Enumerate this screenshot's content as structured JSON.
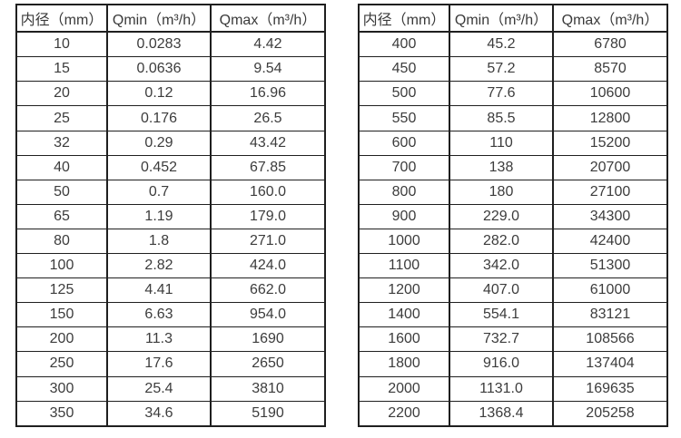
{
  "tables": [
    {
      "id": "left",
      "headers": [
        "内径（mm）",
        "Qmin（m³/h）",
        "Qmax（m³/h）"
      ],
      "rows": [
        [
          "10",
          "0.0283",
          "4.42"
        ],
        [
          "15",
          "0.0636",
          "9.54"
        ],
        [
          "20",
          "0.12",
          "16.96"
        ],
        [
          "25",
          "0.176",
          "26.5"
        ],
        [
          "32",
          "0.29",
          "43.42"
        ],
        [
          "40",
          "0.452",
          "67.85"
        ],
        [
          "50",
          "0.7",
          "160.0"
        ],
        [
          "65",
          "1.19",
          "179.0"
        ],
        [
          "80",
          "1.8",
          "271.0"
        ],
        [
          "100",
          "2.82",
          "424.0"
        ],
        [
          "125",
          "4.41",
          "662.0"
        ],
        [
          "150",
          "6.63",
          "954.0"
        ],
        [
          "200",
          "11.3",
          "1690"
        ],
        [
          "250",
          "17.6",
          "2650"
        ],
        [
          "300",
          "25.4",
          "3810"
        ],
        [
          "350",
          "34.6",
          "5190"
        ]
      ]
    },
    {
      "id": "right",
      "headers": [
        "内径（mm）",
        "Qmin（m³/h）",
        "Qmax（m³/h）"
      ],
      "rows": [
        [
          "400",
          "45.2",
          "6780"
        ],
        [
          "450",
          "57.2",
          "8570"
        ],
        [
          "500",
          "77.6",
          "10600"
        ],
        [
          "550",
          "85.5",
          "12800"
        ],
        [
          "600",
          "110",
          "15200"
        ],
        [
          "700",
          "138",
          "20700"
        ],
        [
          "800",
          "180",
          "27100"
        ],
        [
          "900",
          "229.0",
          "34300"
        ],
        [
          "1000",
          "282.0",
          "42400"
        ],
        [
          "1100",
          "342.0",
          "51300"
        ],
        [
          "1200",
          "407.0",
          "61000"
        ],
        [
          "1400",
          "554.1",
          "83121"
        ],
        [
          "1600",
          "732.7",
          "108566"
        ],
        [
          "1800",
          "916.0",
          "137404"
        ],
        [
          "2000",
          "1131.0",
          "169635"
        ],
        [
          "2200",
          "1368.4",
          "205258"
        ]
      ]
    }
  ]
}
